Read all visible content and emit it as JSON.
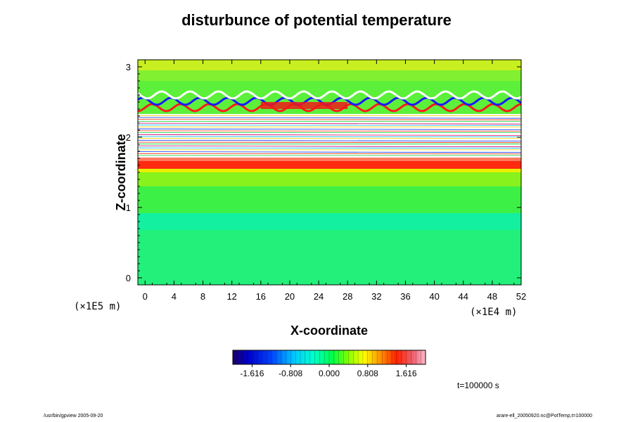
{
  "chart_data": {
    "type": "heatmap",
    "title": "disturbunce of potential temperature",
    "xlabel": "X-coordinate",
    "ylabel": "Z-coordinate",
    "x_scale_label": "(×1E4 m)",
    "y_scale_label": "(×1E5 m)",
    "xlim": [
      -1,
      52
    ],
    "ylim": [
      -0.1,
      3.1
    ],
    "x_ticks": [
      "0",
      "4",
      "8",
      "12",
      "16",
      "20",
      "24",
      "28",
      "32",
      "36",
      "40",
      "44",
      "48",
      "52"
    ],
    "y_ticks": [
      "0",
      "1",
      "2",
      "3"
    ],
    "colorbar": {
      "range": [
        -2.02,
        2.02
      ],
      "tick_labels": [
        "-1.616",
        "-0.808",
        "0.000",
        "0.808",
        "1.616"
      ],
      "tick_values": [
        -1.616,
        -0.808,
        0.0,
        0.808,
        1.616
      ]
    },
    "annotation": "t=100000 s",
    "field_features": [
      {
        "region": "z 0 to 0.9",
        "approx_value": -0.3,
        "description": "near-uniform green/cyan lower layer"
      },
      {
        "region": "z 0.9 to 1.55",
        "approx_value": 0.2,
        "description": "green to yellow band"
      },
      {
        "region": "z 1.55 to 1.7",
        "approx_value": 1.6,
        "description": "strong red band"
      },
      {
        "region": "z 1.7 to 2.3",
        "approx_value": null,
        "description": "white (out of range) with thin contour lines"
      },
      {
        "region": "z 2.3 to 2.8",
        "approx_value": 0.0,
        "description": "wave pattern, red and blue oscillations"
      },
      {
        "region": "z 2.8 to 3.1",
        "approx_value": 0.3,
        "description": "green to yellow upper layer"
      }
    ]
  },
  "footer": {
    "left": "/usr/bin/gpview 2005-09-20",
    "right": "arare-ell_20050920.nc@PotTemp,t=100000"
  }
}
